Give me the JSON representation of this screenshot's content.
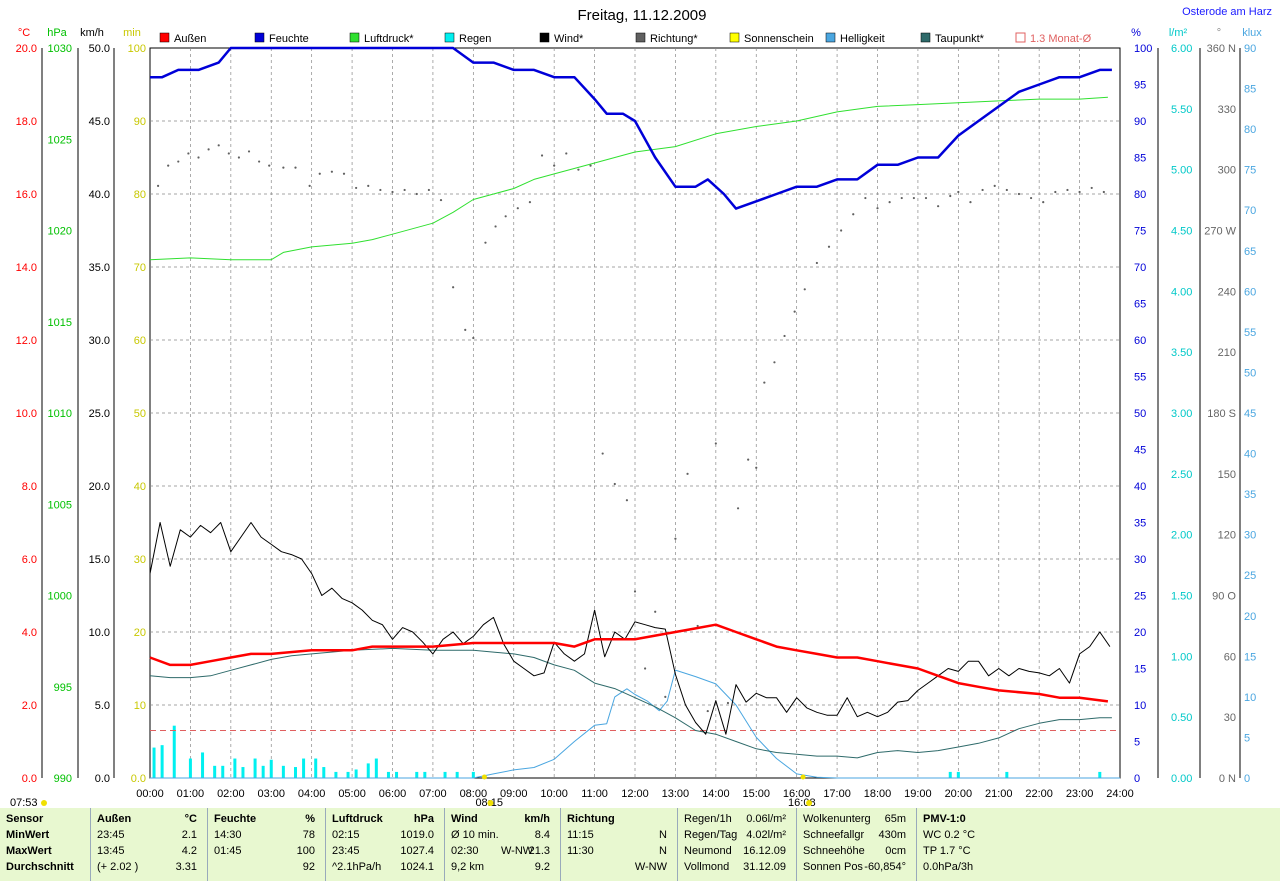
{
  "title": "Freitag, 11.12.2009",
  "location": "Osterode am Harz",
  "colors": {
    "aussen": "#ff0000",
    "feuchte": "#0000d8",
    "luftdruck": "#30e030",
    "regen": "#00f0f0",
    "wind": "#000000",
    "richtung": "#606060",
    "sonnenschein": "#ffff00",
    "helligkeit": "#4aa6e0",
    "taupunkt": "#2e6a6a",
    "monat": "#e06060"
  },
  "legend": [
    {
      "label": "Außen",
      "color": "#ff0000"
    },
    {
      "label": "Feuchte",
      "color": "#0000d8"
    },
    {
      "label": "Luftdruck*",
      "color": "#30e030"
    },
    {
      "label": "Regen",
      "color": "#00f0f0"
    },
    {
      "label": "Wind*",
      "color": "#000000"
    },
    {
      "label": "Richtung*",
      "color": "#606060"
    },
    {
      "label": "Sonnenschein",
      "color": "#ffff00"
    },
    {
      "label": "Helligkeit",
      "color": "#4aa6e0"
    },
    {
      "label": "Taupunkt*",
      "color": "#2e6a6a"
    },
    {
      "label": "1.3 Monat-Ø",
      "color": "#e06060",
      "hollow": true
    }
  ],
  "axis_units": {
    "temp": "°C",
    "hpa": "hPa",
    "kmh": "km/h",
    "min": "min",
    "pct": "%",
    "lm2": "l/m²",
    "deg": "°",
    "klux": "klux"
  },
  "axes": {
    "temp": [
      "20.0",
      "18.0",
      "16.0",
      "14.0",
      "12.0",
      "10.0",
      "8.0",
      "6.0",
      "4.0",
      "2.0",
      "0.0"
    ],
    "hpa": [
      "1030",
      "1025",
      "1020",
      "1015",
      "1010",
      "1005",
      "1000",
      "995",
      "990"
    ],
    "kmh": [
      "50.0",
      "45.0",
      "40.0",
      "35.0",
      "30.0",
      "25.0",
      "20.0",
      "15.0",
      "10.0",
      "5.0",
      "0.0"
    ],
    "min": [
      "100",
      "90",
      "80",
      "70",
      "60",
      "50",
      "40",
      "30",
      "20",
      "10",
      "0.0"
    ],
    "pct": [
      "100",
      "95",
      "90",
      "85",
      "80",
      "75",
      "70",
      "65",
      "60",
      "55",
      "50",
      "45",
      "40",
      "35",
      "30",
      "25",
      "20",
      "15",
      "10",
      "5",
      "0"
    ],
    "lm2": [
      "6.00",
      "5.50",
      "5.00",
      "4.50",
      "4.00",
      "3.50",
      "3.00",
      "2.50",
      "2.00",
      "1.50",
      "1.00",
      "0.50",
      "0.00"
    ],
    "deg": [
      "360 N",
      "330",
      "300",
      "270 W",
      "240",
      "210",
      "180 S",
      "150",
      "120",
      "90 O",
      "60",
      "30",
      "0 N"
    ],
    "klux": [
      "90",
      "85",
      "80",
      "75",
      "70",
      "65",
      "60",
      "55",
      "50",
      "45",
      "40",
      "35",
      "30",
      "25",
      "20",
      "15",
      "10",
      "5",
      "0"
    ]
  },
  "time_labels": [
    "00:00",
    "01:00",
    "02:00",
    "03:00",
    "04:00",
    "05:00",
    "06:00",
    "07:00",
    "08:00",
    "09:00",
    "10:00",
    "11:00",
    "12:00",
    "13:00",
    "14:00",
    "15:00",
    "16:00",
    "17:00",
    "18:00",
    "19:00",
    "20:00",
    "21:00",
    "22:00",
    "23:00",
    "24:00"
  ],
  "sun_times": {
    "sunrise": "07:53",
    "transit": "08:15",
    "sunset": "16:08"
  },
  "chart_data": {
    "type": "line",
    "title": "Freitag, 11.12.2009",
    "x_unit": "hour of day",
    "xlim": [
      0,
      24
    ],
    "series": [
      {
        "name": "Außen",
        "unit": "°C",
        "ylim": [
          0,
          20
        ],
        "x": [
          0,
          0.5,
          1,
          1.5,
          2,
          2.5,
          3,
          4,
          4.5,
          5,
          5.5,
          6,
          7,
          8,
          9,
          10,
          10.5,
          11,
          11.5,
          12,
          12.5,
          13,
          13.5,
          14,
          14.5,
          15,
          15.5,
          16,
          16.5,
          17,
          17.5,
          18,
          18.5,
          19,
          19.5,
          20,
          20.5,
          21,
          22,
          22.5,
          23,
          23.7
        ],
        "y": [
          3.3,
          3.1,
          3.1,
          3.2,
          3.3,
          3.4,
          3.4,
          3.5,
          3.5,
          3.5,
          3.6,
          3.6,
          3.6,
          3.7,
          3.7,
          3.7,
          3.6,
          3.8,
          3.8,
          3.8,
          3.9,
          4.0,
          4.1,
          4.2,
          4.0,
          3.8,
          3.6,
          3.5,
          3.4,
          3.3,
          3.3,
          3.2,
          3.1,
          3.0,
          2.8,
          2.6,
          2.5,
          2.4,
          2.3,
          2.2,
          2.2,
          2.1
        ]
      },
      {
        "name": "Feuchte",
        "unit": "%",
        "ylim": [
          0,
          100
        ],
        "x": [
          0,
          0.3,
          0.7,
          1.2,
          1.7,
          2,
          3,
          6,
          7,
          7.5,
          8,
          8.5,
          9,
          9.5,
          10,
          10.5,
          11,
          11.3,
          11.7,
          12,
          12.5,
          13,
          13.5,
          13.8,
          14.2,
          14.5,
          15,
          15.5,
          16,
          16.5,
          17,
          17.5,
          18,
          18.5,
          19,
          19.5,
          20,
          20.5,
          21,
          21.5,
          22,
          22.5,
          23,
          23.5,
          23.8
        ],
        "y": [
          96,
          96,
          97,
          97,
          98,
          100,
          100,
          100,
          100,
          100,
          98,
          98,
          97,
          97,
          96,
          96,
          93,
          91,
          91,
          90,
          85,
          81,
          81,
          82,
          80,
          78,
          79,
          80,
          81,
          81,
          82,
          82,
          84,
          84,
          85,
          85,
          88,
          90,
          92,
          94,
          95,
          96,
          96,
          97,
          97
        ]
      },
      {
        "name": "Luftdruck*",
        "unit": "hPa",
        "ylim": [
          990,
          1030
        ],
        "x": [
          0,
          1,
          2,
          3,
          3.3,
          4,
          5,
          5.5,
          6,
          7,
          7.5,
          8,
          9,
          9.5,
          10,
          11,
          12,
          13,
          14,
          15,
          16,
          17,
          18,
          19,
          20,
          21,
          22,
          23,
          23.7
        ],
        "y": [
          1018.4,
          1018.5,
          1018.4,
          1018.4,
          1018.8,
          1019.1,
          1019.3,
          1019.5,
          1019.8,
          1020.4,
          1021.0,
          1021.7,
          1022.3,
          1022.8,
          1023.1,
          1023.7,
          1024.3,
          1024.6,
          1025.3,
          1025.7,
          1026.0,
          1026.5,
          1026.8,
          1026.9,
          1027.0,
          1027.1,
          1027.2,
          1027.2,
          1027.3
        ]
      },
      {
        "name": "Regen",
        "unit": "l/m²",
        "type": "bar",
        "x": [
          0.1,
          0.3,
          0.6,
          1.0,
          1.3,
          1.6,
          1.8,
          2.1,
          2.3,
          2.6,
          2.8,
          3.0,
          3.3,
          3.6,
          3.8,
          4.1,
          4.3,
          4.6,
          4.9,
          5.1,
          5.4,
          5.6,
          5.9,
          6.1,
          6.6,
          6.8,
          7.3,
          7.6,
          8.0,
          19.8,
          20.0,
          21.2,
          23.5
        ],
        "y": [
          0.25,
          0.27,
          0.43,
          0.16,
          0.21,
          0.1,
          0.1,
          0.16,
          0.09,
          0.16,
          0.1,
          0.15,
          0.1,
          0.09,
          0.16,
          0.16,
          0.09,
          0.05,
          0.05,
          0.07,
          0.12,
          0.16,
          0.05,
          0.05,
          0.05,
          0.05,
          0.05,
          0.05,
          0.05,
          0.05,
          0.05,
          0.05,
          0.05
        ]
      },
      {
        "name": "Wind*",
        "unit": "km/h",
        "ylim": [
          0,
          50
        ],
        "x": [
          0,
          0.25,
          0.5,
          0.75,
          1,
          1.25,
          1.5,
          1.75,
          2,
          2.25,
          2.5,
          2.75,
          3,
          3.25,
          3.5,
          3.75,
          4,
          4.25,
          4.5,
          4.75,
          5,
          5.25,
          5.5,
          5.75,
          6,
          6.25,
          6.5,
          6.75,
          7,
          7.25,
          7.5,
          7.75,
          8,
          8.25,
          8.5,
          8.75,
          9,
          9.25,
          9.5,
          9.75,
          10,
          10.25,
          10.5,
          10.75,
          11,
          11.25,
          11.5,
          11.75,
          12,
          12.25,
          12.5,
          12.75,
          13,
          13.25,
          13.5,
          13.75,
          14,
          14.25,
          14.5,
          14.75,
          15,
          15.25,
          15.5,
          15.75,
          16,
          16.25,
          16.5,
          16.75,
          17,
          17.25,
          17.5,
          17.75,
          18,
          18.25,
          18.5,
          18.75,
          19,
          19.25,
          19.5,
          19.75,
          20,
          20.25,
          20.5,
          20.75,
          21,
          21.25,
          21.5,
          21.75,
          22,
          22.25,
          22.5,
          22.75,
          23,
          23.25,
          23.5,
          23.75
        ],
        "y": [
          14,
          17.5,
          14.5,
          17,
          16.5,
          17.3,
          16.8,
          17.5,
          15.5,
          16.5,
          17.5,
          16.5,
          16,
          15.5,
          15.3,
          15,
          14,
          12.5,
          13,
          12.3,
          12,
          11.5,
          10.8,
          10.5,
          9.5,
          10.3,
          10,
          9.3,
          8.5,
          9.5,
          10,
          9.2,
          9.7,
          10.5,
          11,
          9.2,
          8,
          7.5,
          7,
          7.2,
          9.3,
          8.5,
          8,
          8.5,
          11.5,
          8.3,
          10,
          9.5,
          10.7,
          10.5,
          10.3,
          10.2,
          7.1,
          5,
          3.8,
          3,
          5.3,
          3,
          6.4,
          5.2,
          5.8,
          5.5,
          5.5,
          4.5,
          5.5,
          4.8,
          4.5,
          4.3,
          4.3,
          5.5,
          4.2,
          4.5,
          4.2,
          4.5,
          5.2,
          5.3,
          6,
          6.5,
          7,
          7.5,
          7.3,
          8,
          8,
          7,
          7.5,
          7,
          7.5,
          7.3,
          7.2,
          7,
          7.5,
          6.5,
          8.5,
          9,
          10,
          9
        ]
      },
      {
        "name": "Richtung*",
        "unit": "°",
        "x": [
          0.2,
          0.45,
          0.7,
          0.95,
          1.2,
          1.45,
          1.7,
          1.95,
          2.2,
          2.45,
          2.7,
          2.95,
          3.3,
          3.6,
          3.95,
          4.2,
          4.5,
          4.8,
          5.1,
          5.4,
          5.7,
          6.0,
          6.3,
          6.6,
          6.9,
          7.2,
          7.5,
          7.8,
          8.0,
          8.3,
          8.55,
          8.8,
          9.1,
          9.4,
          9.7,
          10.0,
          10.3,
          10.6,
          10.9,
          11.2,
          11.5,
          11.8,
          12.0,
          12.25,
          12.5,
          12.75,
          13.0,
          13.3,
          13.55,
          13.8,
          14.0,
          14.3,
          14.55,
          14.8,
          15.0,
          15.2,
          15.45,
          15.7,
          15.95,
          16.2,
          16.5,
          16.8,
          17.1,
          17.4,
          17.7,
          18.0,
          18.3,
          18.6,
          18.9,
          19.2,
          19.5,
          19.8,
          20.0,
          20.3,
          20.6,
          20.9,
          21.2,
          21.5,
          21.8,
          22.1,
          22.4,
          22.7,
          23.0,
          23.3,
          23.6
        ],
        "y": [
          292,
          302,
          304,
          308,
          306,
          310,
          312,
          308,
          306,
          309,
          304,
          302,
          301,
          301,
          292,
          298,
          299,
          298,
          291,
          292,
          290,
          289,
          290,
          288,
          290,
          285,
          242,
          221,
          217,
          264,
          272,
          277,
          281,
          284,
          307,
          302,
          308,
          300,
          302,
          160,
          145,
          137,
          92,
          54,
          82,
          40,
          118,
          150,
          75,
          33,
          165,
          37,
          133,
          157,
          153,
          195,
          205,
          218,
          230,
          241,
          254,
          262,
          270,
          278,
          286,
          281,
          284,
          286,
          286,
          286,
          282,
          287,
          289,
          284,
          290,
          292,
          290,
          288,
          286,
          284,
          289,
          290,
          289,
          291,
          289
        ]
      },
      {
        "name": "Helligkeit",
        "unit": "klux",
        "ylim": [
          0,
          90
        ],
        "x": [
          0,
          7.9,
          8.0,
          8.5,
          9,
          9.5,
          10,
          10.5,
          11,
          11.3,
          11.5,
          11.8,
          12.0,
          12.3,
          12.6,
          12.8,
          13,
          13.5,
          14,
          14.5,
          15,
          15.5,
          16,
          16.5,
          17,
          24
        ],
        "y": [
          0,
          0,
          0,
          0.5,
          1,
          1.3,
          2.3,
          4.5,
          6.5,
          6.7,
          10,
          11,
          10.3,
          9.5,
          8.3,
          9.5,
          13.3,
          12.5,
          11.6,
          9,
          5,
          2.4,
          0.5,
          0.1,
          0,
          0
        ]
      },
      {
        "name": "Taupunkt*",
        "unit": "°C",
        "ylim": [
          0,
          20
        ],
        "x": [
          0,
          0.5,
          1,
          1.5,
          2,
          2.5,
          3,
          3.5,
          4,
          5,
          6,
          7,
          8,
          8.5,
          9,
          9.5,
          10,
          10.5,
          11,
          11.5,
          12,
          12.5,
          13,
          13.5,
          14,
          14.5,
          15,
          15.5,
          16,
          16.5,
          17,
          17.5,
          18,
          18.5,
          19,
          19.5,
          20,
          20.5,
          21,
          21.5,
          22,
          22.5,
          23,
          23.5,
          23.8
        ],
        "y": [
          2.8,
          2.75,
          2.75,
          2.8,
          2.95,
          3.1,
          3.25,
          3.35,
          3.4,
          3.5,
          3.55,
          3.5,
          3.5,
          3.45,
          3.4,
          3.3,
          3.1,
          2.95,
          2.6,
          2.45,
          2.2,
          1.95,
          1.65,
          1.3,
          1.2,
          1.0,
          0.8,
          0.7,
          0.65,
          0.6,
          0.6,
          0.55,
          0.7,
          0.75,
          0.7,
          0.75,
          0.85,
          0.95,
          1.1,
          1.35,
          1.5,
          1.6,
          1.6,
          1.65,
          1.65
        ]
      },
      {
        "name": "1.3 Monat-Ø",
        "unit": "°C",
        "style": "dashed",
        "value": 1.3
      }
    ]
  },
  "stats": {
    "labels": {
      "sensor": "Sensor",
      "min": "MinWert",
      "max": "MaxWert",
      "avg": "Durchschnitt"
    },
    "aussen": {
      "hdr": "Außen",
      "unit": "°C",
      "min_t": "23:45",
      "min_v": "2.1",
      "max_t": "13:45",
      "max_v": "4.2",
      "avg_t": "(+ 2.02 )",
      "avg_v": "3.31"
    },
    "feuchte": {
      "hdr": "Feuchte",
      "unit": "%",
      "min_t": "14:30",
      "min_v": "78",
      "max_t": "01:45",
      "max_v": "100",
      "avg_t": "",
      "avg_v": "92"
    },
    "luftdruck": {
      "hdr": "Luftdruck",
      "unit": "hPa",
      "min_t": "02:15",
      "min_v": "1019.0",
      "max_t": "23:45",
      "max_v": "1027.4",
      "avg_t": "^2.1hPa/h",
      "avg_v": "1024.1"
    },
    "wind": {
      "hdr": "Wind",
      "unit": "km/h",
      "r1a": "Ø 10 min.",
      "r1b": "8.4",
      "r2a": "02:30",
      "r2m": "W-NW",
      "r2b": "21.3",
      "r3a": "9,2 km",
      "r3b": "9.2"
    },
    "richtung": {
      "hdr": "Richtung",
      "r1a": "11:15",
      "r1b": "N",
      "r2a": "11:30",
      "r2b": "N",
      "r3b": "W-NW"
    },
    "regen": [
      {
        "a": "Regen/1h",
        "b": "0.06l/m²"
      },
      {
        "a": "Regen/Tag",
        "b": "4.02l/m²"
      },
      {
        "a": "Neumond",
        "b": "16.12.09"
      },
      {
        "a": "Vollmond",
        "b": "31.12.09"
      }
    ],
    "wolken": [
      {
        "a": "Wolkenunterg",
        "b": "65m"
      },
      {
        "a": "Schneefallgr",
        "b": "430m"
      },
      {
        "a": "Schneehöhe",
        "b": "0cm"
      },
      {
        "a": "Sonnen Pos",
        "b": "-60,854°"
      }
    ],
    "pmv": [
      "PMV-1:0",
      "WC 0.2 °C",
      "TP 1.7 °C",
      "0.0hPa/3h"
    ]
  }
}
